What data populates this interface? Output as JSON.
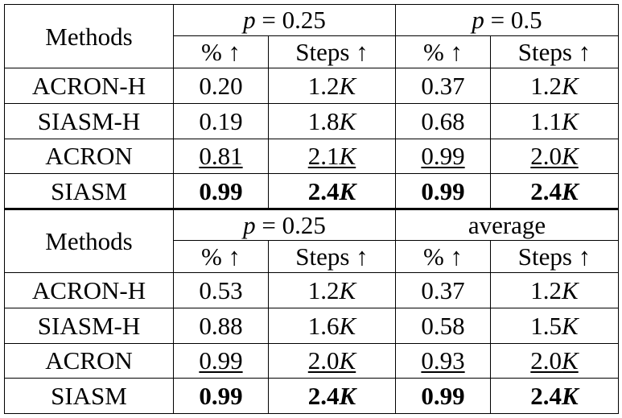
{
  "method_header": "Methods",
  "pct_header": "% ↑",
  "steps_header": "Steps ↑",
  "blocks": [
    {
      "groups": [
        {
          "var": "p",
          "eq": " = ",
          "val": "0.25",
          "text": ""
        },
        {
          "var": "p",
          "eq": " = ",
          "val": "0.5",
          "text": ""
        }
      ],
      "rows": [
        {
          "method": "ACRON-H",
          "style": "normal",
          "c": [
            [
              "0.20",
              ""
            ],
            [
              "1.2",
              "K"
            ],
            [
              "0.37",
              ""
            ],
            [
              "1.2",
              "K"
            ]
          ]
        },
        {
          "method": "SIASM-H",
          "style": "normal",
          "c": [
            [
              "0.19",
              ""
            ],
            [
              "1.8",
              "K"
            ],
            [
              "0.68",
              ""
            ],
            [
              "1.1",
              "K"
            ]
          ]
        },
        {
          "method": "ACRON",
          "style": "underline",
          "c": [
            [
              "0.81",
              ""
            ],
            [
              "2.1",
              "K"
            ],
            [
              "0.99",
              ""
            ],
            [
              "2.0",
              "K"
            ]
          ]
        },
        {
          "method": "SIASM",
          "style": "bold",
          "c": [
            [
              "0.99",
              ""
            ],
            [
              "2.4",
              "K"
            ],
            [
              "0.99",
              ""
            ],
            [
              "2.4",
              "K"
            ]
          ]
        }
      ]
    },
    {
      "groups": [
        {
          "var": "p",
          "eq": " = ",
          "val": "0.25",
          "text": ""
        },
        {
          "var": "",
          "eq": "",
          "val": "",
          "text": "average"
        }
      ],
      "rows": [
        {
          "method": "ACRON-H",
          "style": "normal",
          "c": [
            [
              "0.53",
              ""
            ],
            [
              "1.2",
              "K"
            ],
            [
              "0.37",
              ""
            ],
            [
              "1.2",
              "K"
            ]
          ]
        },
        {
          "method": "SIASM-H",
          "style": "normal",
          "c": [
            [
              "0.88",
              ""
            ],
            [
              "1.6",
              "K"
            ],
            [
              "0.58",
              ""
            ],
            [
              "1.5",
              "K"
            ]
          ]
        },
        {
          "method": "ACRON",
          "style": "underline",
          "c": [
            [
              "0.99",
              ""
            ],
            [
              "2.0",
              "K"
            ],
            [
              "0.93",
              ""
            ],
            [
              "2.0",
              "K"
            ]
          ]
        },
        {
          "method": "SIASM",
          "style": "bold",
          "c": [
            [
              "0.99",
              ""
            ],
            [
              "2.4",
              "K"
            ],
            [
              "0.99",
              ""
            ],
            [
              "2.4",
              "K"
            ]
          ]
        }
      ]
    }
  ]
}
